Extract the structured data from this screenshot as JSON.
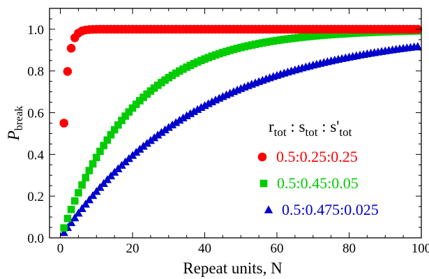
{
  "chart_data": {
    "type": "scatter",
    "xlabel": "Repeat units, N",
    "ylabel_main": "P",
    "ylabel_sub": "break",
    "xlim": [
      -3,
      100
    ],
    "ylim": [
      0,
      1.1
    ],
    "xticks": [
      0,
      20,
      40,
      60,
      80,
      100
    ],
    "xtick_labels": [
      "0",
      "20",
      "40",
      "60",
      "80",
      "100"
    ],
    "yticks": [
      0.0,
      0.2,
      0.4,
      0.6,
      0.8,
      1.0
    ],
    "ytick_labels": [
      "0.0",
      "0.2",
      "0.4",
      "0.6",
      "0.8",
      "1.0"
    ],
    "grid": false,
    "legend_position": "right",
    "legend_title": {
      "r": "r",
      "r_sub": "tot",
      "sep1": " : ",
      "s": "s",
      "s_sub": "tot",
      "sep2": " : ",
      "sp": "s'",
      "sp_sub": "tot"
    },
    "n_start": 1,
    "n_end": 99,
    "series": [
      {
        "name": "0.5:0.25:0.25",
        "marker": "circle",
        "color": "#ff0000",
        "per_unit_probability": 0.55
      },
      {
        "name": "0.5:0.45:0.05",
        "marker": "square",
        "color": "#00cc00",
        "per_unit_probability": 0.0475
      },
      {
        "name": "0.5:0.475:0.025",
        "marker": "triangle",
        "color": "#0000cc",
        "per_unit_probability": 0.0248
      }
    ]
  }
}
